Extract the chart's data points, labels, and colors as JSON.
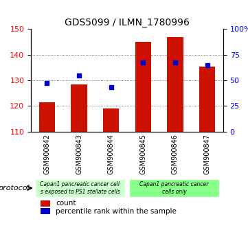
{
  "title": "GDS5099 / ILMN_1780996",
  "samples": [
    "GSM900842",
    "GSM900843",
    "GSM900844",
    "GSM900845",
    "GSM900846",
    "GSM900847"
  ],
  "counts": [
    121.5,
    128.5,
    119.0,
    145.0,
    147.0,
    135.5
  ],
  "percentile_ranks": [
    47.5,
    55.0,
    43.5,
    67.5,
    67.5,
    65.0
  ],
  "ylim_left": [
    110,
    150
  ],
  "ylim_right": [
    0,
    100
  ],
  "yticks_left": [
    110,
    120,
    130,
    140,
    150
  ],
  "yticks_right": [
    0,
    25,
    50,
    75,
    100
  ],
  "ytick_labels_right": [
    "0",
    "25",
    "50",
    "75",
    "100%"
  ],
  "bar_color": "#cc1100",
  "dot_color": "#0000cc",
  "bar_bottom": 110,
  "grid_color": "#000000",
  "grid_alpha": 0.4,
  "protocol_groups": [
    {
      "label": "Capan1 pancreatic cancer cell\ns exposed to PS1 stellate cells",
      "start": 0,
      "end": 3,
      "color": "#ccffcc"
    },
    {
      "label": "Capan1 pancreatic cancer\ncells only",
      "start": 3,
      "end": 6,
      "color": "#88ff88"
    }
  ],
  "legend_items": [
    {
      "color": "#cc1100",
      "label": "count"
    },
    {
      "color": "#0000cc",
      "label": "percentile rank within the sample"
    }
  ],
  "protocol_label": "protocol",
  "background_color": "#f0f0f0"
}
